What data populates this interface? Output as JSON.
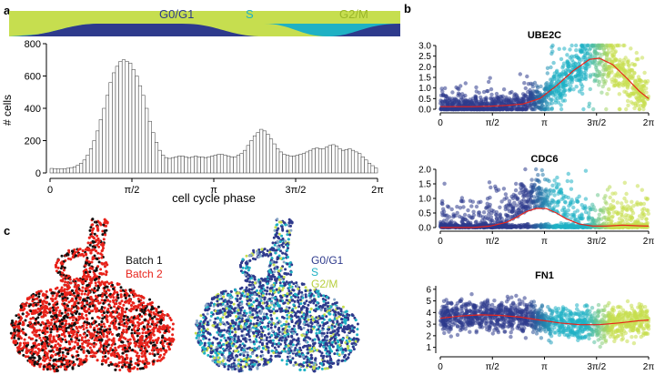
{
  "panel_labels": {
    "a": "a",
    "b": "b",
    "c": "c"
  },
  "colors": {
    "g0g1": "#2e3a8c",
    "s": "#1fb1c4",
    "g2m": "#c6de4f",
    "batch1": "#111111",
    "batch2": "#e8231b",
    "fit_line": "#e8231b",
    "hist_bar": "#ffffff"
  },
  "phase_bar": {
    "labels": [
      "G0/G1",
      "S",
      "G2/M"
    ]
  },
  "chart_data": [
    {
      "id": "phase-histogram",
      "type": "bar",
      "xlabel": "cell cycle phase",
      "ylabel": "# cells",
      "xlim": [
        0,
        6.2832
      ],
      "ylim": [
        0,
        800
      ],
      "yticks": [
        "0",
        "200",
        "400",
        "600",
        "800"
      ],
      "xtick_labels": [
        "0",
        "π/2",
        "π",
        "3π/2",
        "2π"
      ],
      "bin_count": 100,
      "values": [
        28,
        27,
        25,
        25,
        27,
        29,
        33,
        38,
        48,
        60,
        80,
        110,
        150,
        200,
        260,
        330,
        400,
        480,
        560,
        620,
        660,
        690,
        700,
        690,
        680,
        640,
        600,
        540,
        480,
        400,
        320,
        250,
        190,
        140,
        110,
        95,
        90,
        95,
        100,
        105,
        105,
        100,
        95,
        100,
        105,
        100,
        100,
        95,
        100,
        105,
        110,
        115,
        115,
        110,
        105,
        100,
        100,
        110,
        120,
        140,
        170,
        200,
        230,
        250,
        270,
        260,
        240,
        210,
        180,
        150,
        130,
        115,
        110,
        105,
        105,
        110,
        115,
        120,
        130,
        140,
        150,
        155,
        150,
        150,
        160,
        170,
        175,
        165,
        150,
        140,
        145,
        150,
        140,
        130,
        120,
        100,
        80,
        60,
        45,
        30
      ]
    },
    {
      "id": "ube2c",
      "type": "scatter",
      "title": "UBE2C",
      "xlim": [
        0,
        6.2832
      ],
      "ylim": [
        0,
        3.0
      ],
      "yticks": [
        "0.0",
        "0.5",
        "1.0",
        "1.5",
        "2.0",
        "2.5",
        "3.0"
      ],
      "xtick_labels": [
        "0",
        "π/2",
        "π",
        "3π/2",
        "2π"
      ],
      "fit_line": {
        "x": [
          0,
          0.5,
          1.0,
          1.5,
          2.0,
          2.5,
          3.0,
          3.5,
          4.0,
          4.5,
          4.8,
          5.2,
          5.6,
          6.0,
          6.2832
        ],
        "y": [
          0.12,
          0.12,
          0.12,
          0.14,
          0.18,
          0.25,
          0.5,
          1.1,
          1.8,
          2.35,
          2.4,
          2.1,
          1.5,
          0.85,
          0.5
        ]
      }
    },
    {
      "id": "cdc6",
      "type": "scatter",
      "title": "CDC6",
      "xlim": [
        0,
        6.2832
      ],
      "ylim": [
        0,
        2.0
      ],
      "yticks": [
        "0.0",
        "0.5",
        "1.0",
        "1.5",
        "2.0"
      ],
      "xtick_labels": [
        "0",
        "π/2",
        "π",
        "3π/2",
        "2π"
      ],
      "fit_line": {
        "x": [
          0,
          0.5,
          1.0,
          1.5,
          2.0,
          2.3,
          2.6,
          2.9,
          3.2,
          3.5,
          3.8,
          4.2,
          4.6,
          5.0,
          5.5,
          6.0,
          6.2832
        ],
        "y": [
          0.0,
          0.0,
          0.0,
          0.05,
          0.18,
          0.35,
          0.55,
          0.66,
          0.65,
          0.5,
          0.3,
          0.12,
          0.05,
          0.05,
          0.08,
          0.06,
          0.05
        ]
      }
    },
    {
      "id": "fn1",
      "type": "scatter",
      "title": "FN1",
      "xlim": [
        0,
        6.2832
      ],
      "ylim": [
        0.5,
        6.3
      ],
      "yticks": [
        "1",
        "2",
        "3",
        "4",
        "5",
        "6"
      ],
      "xtick_labels": [
        "0",
        "π/2",
        "π",
        "3π/2",
        "2π"
      ],
      "fit_line": {
        "x": [
          0,
          0.6,
          1.2,
          1.8,
          2.4,
          3.0,
          3.6,
          4.2,
          4.8,
          5.4,
          6.0,
          6.2832
        ],
        "y": [
          3.5,
          3.7,
          3.8,
          3.75,
          3.6,
          3.35,
          3.1,
          2.95,
          2.95,
          3.1,
          3.3,
          3.35
        ]
      }
    }
  ],
  "umap": {
    "left_legend": [
      "Batch 1",
      "Batch 2"
    ],
    "right_legend": [
      "G0/G1",
      "S",
      "G2/M"
    ]
  }
}
